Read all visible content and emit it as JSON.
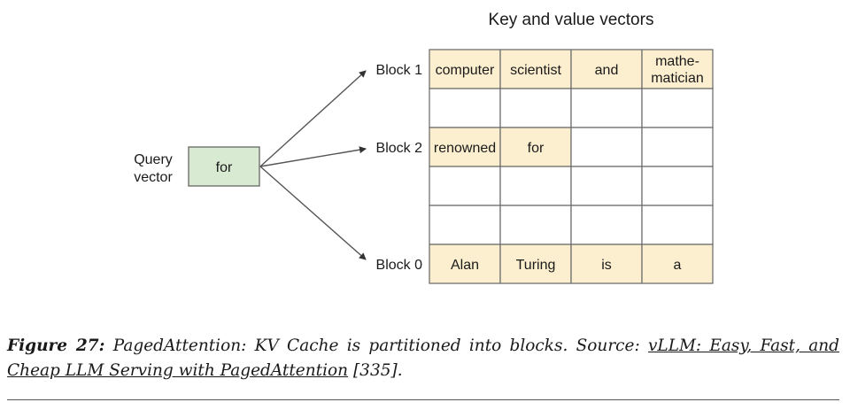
{
  "diagram": {
    "title": "Key and value vectors",
    "query": {
      "label_line1": "Query",
      "label_line2": "vector",
      "token": "for"
    },
    "blocks": [
      {
        "label": "Block 1",
        "tokens": [
          "computer",
          "scientist",
          "and",
          [
            "mathe-",
            "matician"
          ]
        ]
      },
      {
        "label": "",
        "tokens": [
          "",
          "",
          "",
          ""
        ]
      },
      {
        "label": "Block 2",
        "tokens": [
          "renowned",
          "for",
          "",
          ""
        ]
      },
      {
        "label": "",
        "tokens": [
          "",
          "",
          "",
          ""
        ]
      },
      {
        "label": "",
        "tokens": [
          "",
          "",
          "",
          ""
        ]
      },
      {
        "label": "Block 0",
        "tokens": [
          "Alan",
          "Turing",
          "is",
          "a"
        ]
      }
    ],
    "colors": {
      "filled_cell": "#fcefcf",
      "query_box": "#d9ead3",
      "grid_line": "#666666",
      "arrow": "#555555"
    }
  },
  "caption": {
    "label": "Figure 27:",
    "text": "PagedAttention: KV Cache is partitioned into blocks. Source:",
    "link_text": "vLLM: Easy, Fast, and Cheap LLM Serving with PagedAttention",
    "ref": "[335]."
  }
}
